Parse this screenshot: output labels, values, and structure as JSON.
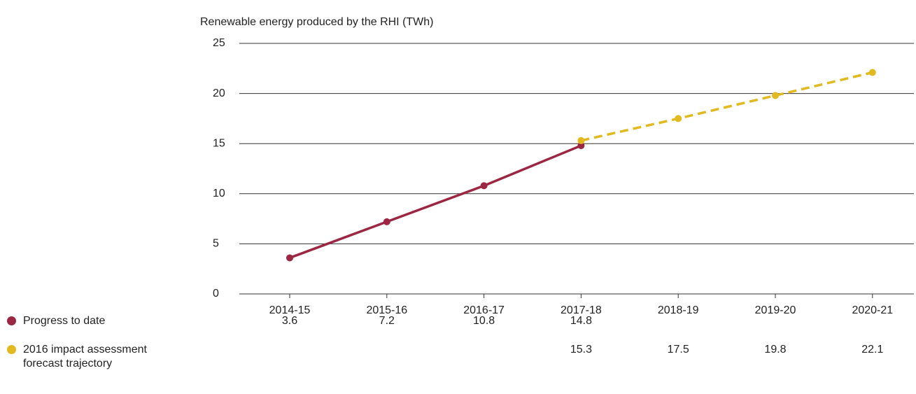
{
  "chart_data": {
    "type": "line",
    "title": "Renewable energy produced by the RHI (TWh)",
    "categories": [
      "2014-15",
      "2015-16",
      "2016-17",
      "2017-18",
      "2018-19",
      "2019-20",
      "2020-21"
    ],
    "series": [
      {
        "name": "Progress to date",
        "color": "#9b2743",
        "dashed": false,
        "values": [
          3.6,
          7.2,
          10.8,
          14.8,
          null,
          null,
          null
        ]
      },
      {
        "name": "2016 impact assessment forecast trajectory",
        "color": "#e2b91f",
        "dashed": true,
        "values": [
          null,
          null,
          null,
          15.3,
          17.5,
          19.8,
          22.1
        ]
      }
    ],
    "ylim": [
      0,
      25
    ],
    "yticks": [
      0,
      5,
      10,
      15,
      20,
      25
    ],
    "grid": true
  }
}
